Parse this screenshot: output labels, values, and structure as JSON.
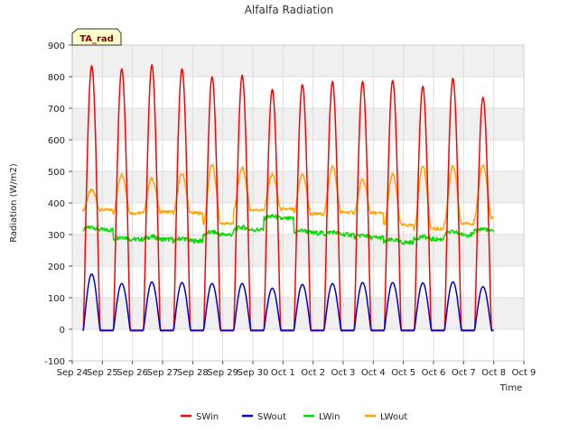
{
  "chart_data": {
    "type": "line",
    "title": "Alfalfa Radiation",
    "xlabel": "Time",
    "ylabel": "Radiation (W/m2)",
    "badge": "TA_rad",
    "ylim": [
      -100,
      900
    ],
    "yticks": [
      -100,
      0,
      100,
      200,
      300,
      400,
      500,
      600,
      700,
      800,
      900
    ],
    "xlim": [
      0,
      15
    ],
    "xticks": [
      {
        "x": 0,
        "label": "Sep 24"
      },
      {
        "x": 1,
        "label": "Sep 25"
      },
      {
        "x": 2,
        "label": "Sep 26"
      },
      {
        "x": 3,
        "label": "Sep 27"
      },
      {
        "x": 4,
        "label": "Sep 28"
      },
      {
        "x": 5,
        "label": "Sep 29"
      },
      {
        "x": 6,
        "label": "Sep 30"
      },
      {
        "x": 7,
        "label": "Oct 1"
      },
      {
        "x": 8,
        "label": "Oct 2"
      },
      {
        "x": 9,
        "label": "Oct 3"
      },
      {
        "x": 10,
        "label": "Oct 4"
      },
      {
        "x": 11,
        "label": "Oct 5"
      },
      {
        "x": 12,
        "label": "Oct 6"
      },
      {
        "x": 13,
        "label": "Oct 7"
      },
      {
        "x": 14,
        "label": "Oct 8"
      },
      {
        "x": 15,
        "label": "Oct 9"
      }
    ],
    "x_unit_note": "",
    "day_start": 0.35,
    "day_end": 14.0,
    "days": [
      {
        "sw_in_peak": 835,
        "sw_out_peak": 175,
        "lw_out_base": 378,
        "lw_out_peak": 440,
        "lw_in": 315
      },
      {
        "sw_in_peak": 825,
        "sw_out_peak": 145,
        "lw_out_base": 368,
        "lw_out_peak": 490,
        "lw_in": 285
      },
      {
        "sw_in_peak": 838,
        "sw_out_peak": 150,
        "lw_out_base": 372,
        "lw_out_peak": 478,
        "lw_in": 285
      },
      {
        "sw_in_peak": 825,
        "sw_out_peak": 148,
        "lw_out_base": 368,
        "lw_out_peak": 492,
        "lw_in": 280
      },
      {
        "sw_in_peak": 800,
        "sw_out_peak": 145,
        "lw_out_base": 335,
        "lw_out_peak": 520,
        "lw_in": 300
      },
      {
        "sw_in_peak": 805,
        "sw_out_peak": 145,
        "lw_out_base": 378,
        "lw_out_peak": 510,
        "lw_in": 315
      },
      {
        "sw_in_peak": 760,
        "sw_out_peak": 130,
        "lw_out_base": 380,
        "lw_out_peak": 490,
        "lw_in": 350
      },
      {
        "sw_in_peak": 775,
        "sw_out_peak": 142,
        "lw_out_base": 365,
        "lw_out_peak": 490,
        "lw_in": 305
      },
      {
        "sw_in_peak": 785,
        "sw_out_peak": 145,
        "lw_out_base": 370,
        "lw_out_peak": 515,
        "lw_in": 300
      },
      {
        "sw_in_peak": 785,
        "sw_out_peak": 148,
        "lw_out_base": 368,
        "lw_out_peak": 472,
        "lw_in": 290
      },
      {
        "sw_in_peak": 788,
        "sw_out_peak": 148,
        "lw_out_base": 330,
        "lw_out_peak": 490,
        "lw_in": 275
      },
      {
        "sw_in_peak": 770,
        "sw_out_peak": 147,
        "lw_out_base": 318,
        "lw_out_peak": 520,
        "lw_in": 285
      },
      {
        "sw_in_peak": 795,
        "sw_out_peak": 150,
        "lw_out_base": 335,
        "lw_out_peak": 515,
        "lw_in": 300
      },
      {
        "sw_in_peak": 735,
        "sw_out_peak": 135,
        "lw_out_base": 352,
        "lw_out_peak": 520,
        "lw_in": 310
      }
    ],
    "series": [
      {
        "name": "SWin",
        "color": "#ff0000"
      },
      {
        "name": "SWout",
        "color": "#0000cc"
      },
      {
        "name": "LWin",
        "color": "#00dd00"
      },
      {
        "name": "LWout",
        "color": "#ffa500"
      }
    ],
    "legend_position": "bottom-center",
    "grid": true,
    "background_bands": "alternating light gray"
  }
}
